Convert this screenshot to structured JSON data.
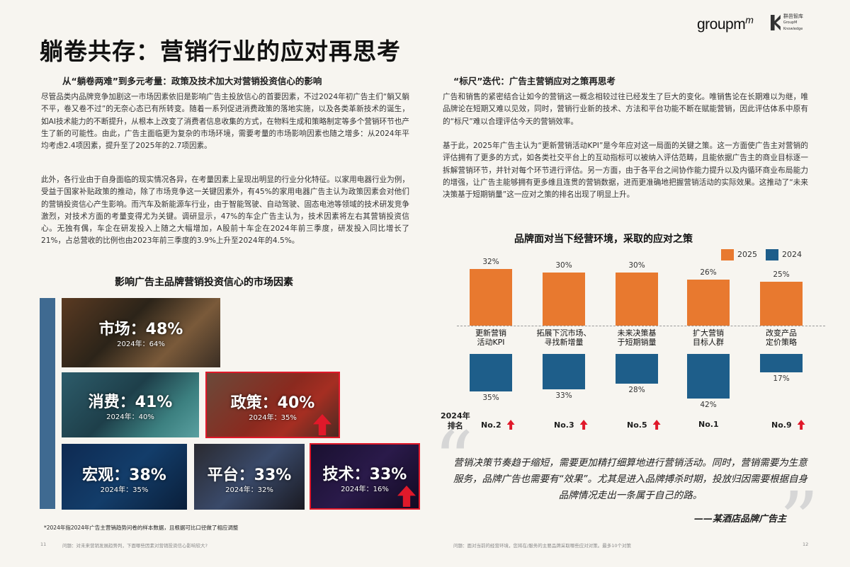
{
  "logos": {
    "groupm": "groupm",
    "groupm_sup": "",
    "kantar_line1": "群邑智库",
    "kantar_line2": "GroupM Knowledge"
  },
  "title": "躺卷共存：营销行业的应对再思考",
  "left": {
    "subtitle": "从“躺卷两难”到多元考量：政策及技术加大对营销投资信心的影响",
    "para1": "尽管品类内品牌竞争加剧这一市场因素依旧是影响广告主投放信心的首要因素，不过2024年初广告主们“躺又躺不平，卷又卷不过”的无奈心态已有所转变。随着一系列促进消费政策的落地实施，以及各类革新技术的诞生，如AI技术能力的不断提升，从根本上改变了消费者信息收集的方式，在物料生成和策略制定等多个营销环节也产生了新的可能性。由此，广告主面临更为复杂的市场环境，需要考量的市场影响因素也随之增多：从2024年平均考虑2.4项因素，提升至了2025年的2.7项因素。",
    "para2": "此外，各行业由于自身面临的现实情况各异，在考量因素上呈现出明显的行业分化特征。以家用电器行业为例，受益于国家补贴政策的推动，除了市场竞争这一关键因素外，有45%的家用电器广告主认为政策因素会对他们的营销投资信心产生影响。而汽车及新能源车行业，由于智能驾驶、自动驾驶、固态电池等领域的技术研发竞争激烈，对技术方面的考量变得尤为关键。调研显示，47%的车企广告主认为，技术因素将左右其营销投资信心。无独有偶，车企在研发投入上随之大幅增加，A股前十车企在2024年前三季度，研发投入同比增长了21%，占总营收的比例也由2023年前三季度的3.9%上升至2024年的4.5%。",
    "section_title": "影响广告主品牌营销投资信心的市场因素",
    "tiles": [
      {
        "label": "市场：48%",
        "sub": "2024年：64%"
      },
      {
        "label": "消费：41%",
        "sub": "2024年：40%"
      },
      {
        "label": "政策：40%",
        "sub": "2024年：35%"
      },
      {
        "label": "宏观：38%",
        "sub": "2024年：35%"
      },
      {
        "label": "平台：33%",
        "sub": "2024年：32%"
      },
      {
        "label": "技术：33%",
        "sub": "2024年：16%"
      }
    ],
    "footnote": "*2024年指2024年广告主营销趋势问卷的样本数据，且根据可比口径做了相应调整",
    "page_num": "11",
    "footer": "问题：对未来营销发展趋势判，下面哪些因素对营销投资信心影响较大?"
  },
  "right": {
    "subtitle": "“标尺”迭代：广告主营销应对之策再思考",
    "para1": "广告和销售的紧密结合让如今的营销这一概念相较过往已经发生了巨大的变化。唯销售论在长期难以为继，唯品牌论在短期又难以见效，同时，营销行业新的技术、方法和平台功能不断在赋能营销，因此评估体系中原有的“标尺”难以合理评估今天的营销效率。",
    "para2": "基于此，2025年广告主认为“更新营销活动KPI”是今年应对这一局面的关键之策。这一方面使广告主对营销的评估拥有了更多的方式，如各类社交平台上的互动指标可以被纳入评估范畴，且能依据广告主的商业目标逐一拆解营销环节，并针对每个环节进行评估。另一方面，由于各平台之间协作能力提升以及内循环商业布局能力的增强，让广告主能够拥有更多维且连贯的营销数据，进而更准确地把握营销活动的实际效果。这推动了“未来决策基于短期销量”这一应对之策的排名出现了明显上升。",
    "section_title": "品牌面对当下经营环境，采取的应对之策",
    "rank_head_1": "2024年",
    "rank_head_2": "排名",
    "quote": "营销决策节奏趋于缩短，需要更加精打细算地进行营销活动。同时，营销需要为生意服务，品牌广告也需要有“效果”。尤其是进入品牌搏杀时期，投放归因需要根据自身品牌情况走出一条属于自己的路。",
    "quote_src": "——某酒店品牌广告主",
    "page_num": "12",
    "footer": "问题：面对当前的经营环境，您将在/服务的主要品牌采取哪些应对对策。最多10个对策"
  },
  "colors": {
    "c2025": "#e8792f",
    "c2024": "#1e5e8a",
    "accent_red": "#e0192a"
  },
  "chart_data": {
    "type": "bar",
    "title": "品牌面对当下经营环境，采取的应对之策",
    "categories": [
      "更新营销\n活动KPI",
      "拓展下沉市场、\n寻找新增量",
      "未来决策基\n于短期销量",
      "扩大营销\n目标人群",
      "改变产品\n定价策略"
    ],
    "series": [
      {
        "name": "2025",
        "values": [
          32,
          30,
          30,
          26,
          25
        ]
      },
      {
        "name": "2024",
        "values": [
          35,
          33,
          28,
          42,
          17
        ]
      }
    ],
    "value_labels_2025": [
      "32%",
      "30%",
      "30%",
      "26%",
      "25%"
    ],
    "value_labels_2024": [
      "35%",
      "33%",
      "28%",
      "42%",
      "17%"
    ],
    "rank_2024": [
      "No.2",
      "No.3",
      "No.5",
      "No.1",
      "No.9"
    ],
    "rank_up": [
      true,
      true,
      true,
      false,
      true
    ],
    "legend": "top-right",
    "ylim": [
      0,
      45
    ]
  }
}
